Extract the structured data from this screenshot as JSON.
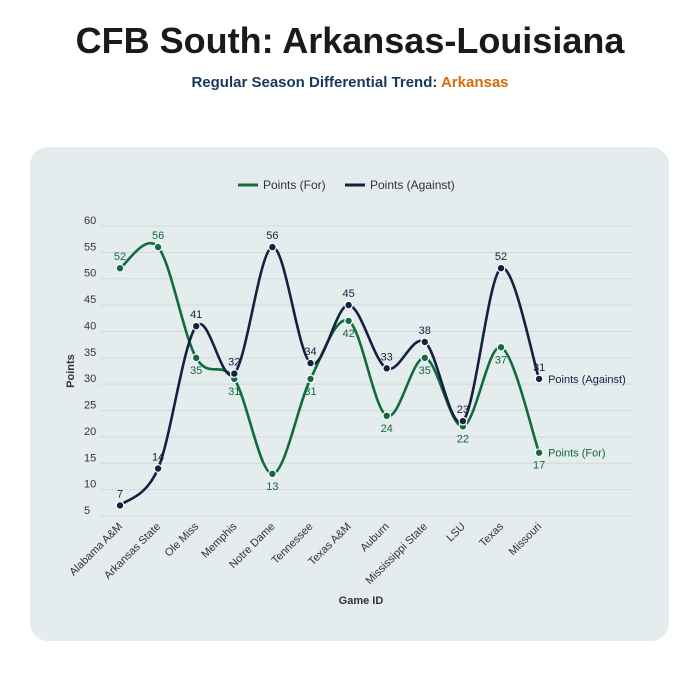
{
  "header": {
    "title": "CFB South: Arkansas-Louisiana",
    "subtitle_prefix": "Regular Season Differential Trend: ",
    "subtitle_team": "Arkansas"
  },
  "colors": {
    "for": "#136b3b",
    "against": "#12233f",
    "team_accent": "#d86a0c",
    "panel": "#e4ecee"
  },
  "chart_data": {
    "type": "line",
    "title": "",
    "xlabel": "Game ID",
    "ylabel": "Points",
    "ylim": [
      5,
      60
    ],
    "yticks": [
      5,
      10,
      15,
      20,
      25,
      30,
      35,
      40,
      45,
      50,
      55,
      60
    ],
    "grid": true,
    "legend_placement": "top-center",
    "categories": [
      "Alabama A&M",
      "Arkansas State",
      "Ole Miss",
      "Memphis",
      "Notre Dame",
      "Tennessee",
      "Texas A&M",
      "Auburn",
      "Mississippi State",
      "LSU",
      "Texas",
      "Missouri"
    ],
    "series": [
      {
        "name": "Points (For)",
        "color": "#136b3b",
        "values": [
          52,
          56,
          35,
          31,
          13,
          31,
          42,
          24,
          35,
          22,
          37,
          17
        ],
        "end_label": "Points (For)"
      },
      {
        "name": "Points (Against)",
        "color": "#12233f",
        "values": [
          7,
          14,
          41,
          32,
          56,
          34,
          45,
          33,
          38,
          23,
          52,
          31
        ],
        "end_label": "Points (Against)"
      }
    ]
  }
}
